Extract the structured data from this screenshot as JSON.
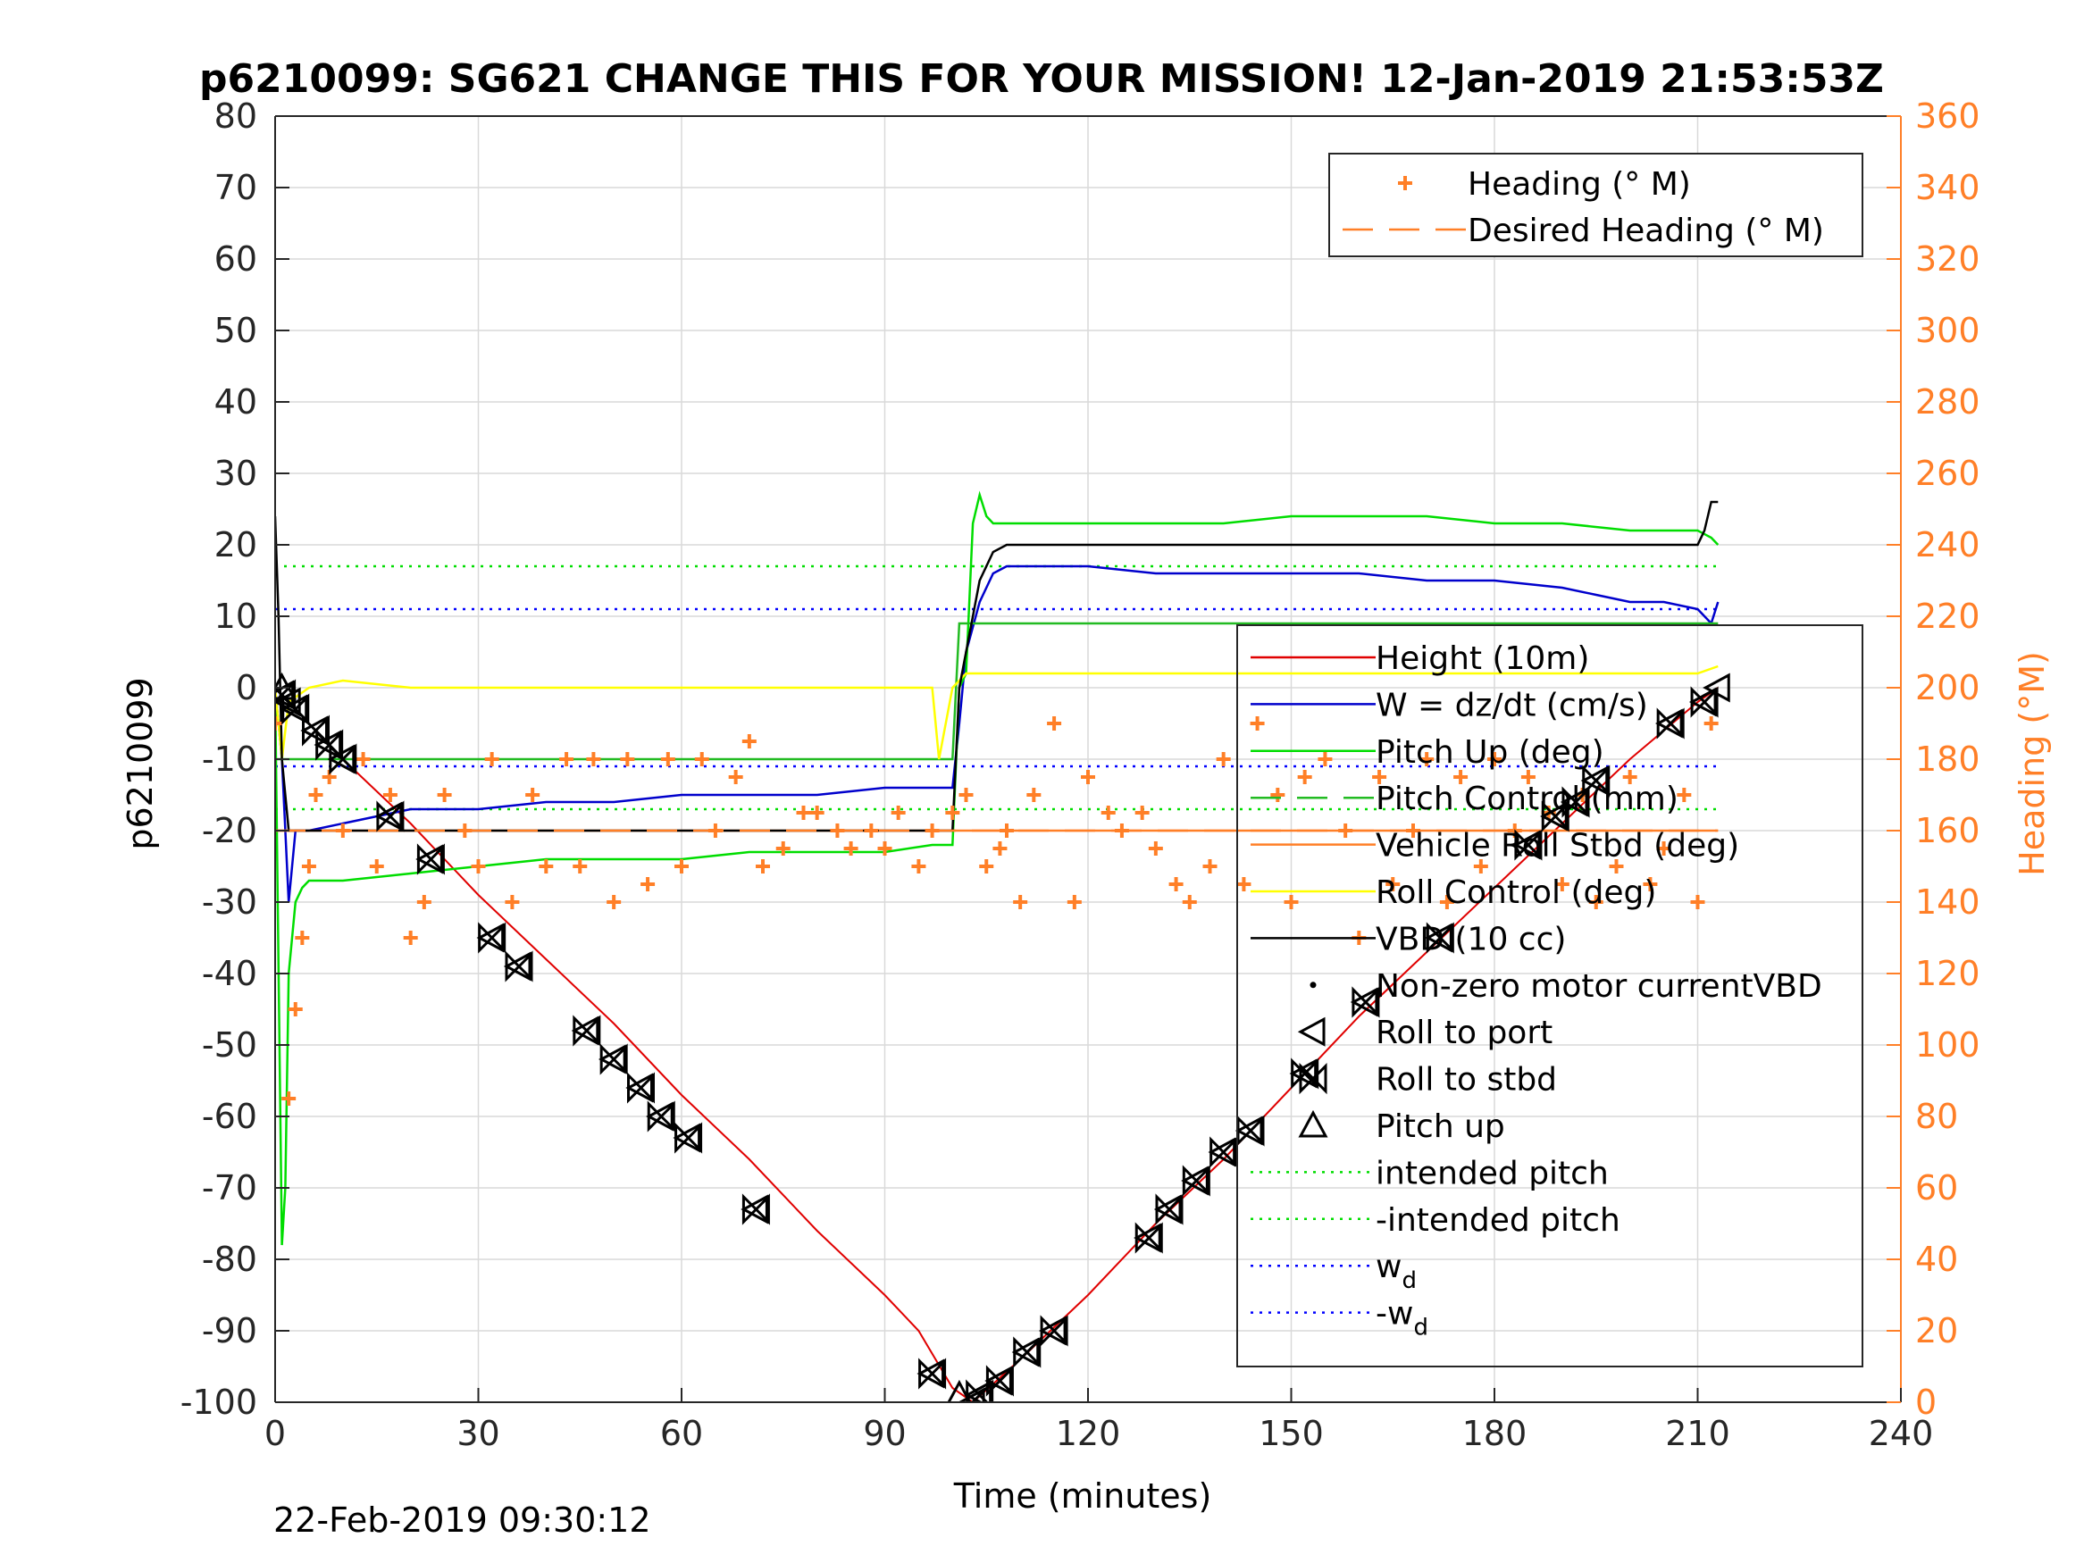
{
  "chart_data": {
    "type": "line",
    "title": "p6210099: SG621 CHANGE THIS FOR YOUR MISSION! 12-Jan-2019 21:53:53Z",
    "xlabel": "Time (minutes)",
    "ylabel": "p6210099",
    "y2label": "Heading (°M)",
    "xlim": [
      0,
      240
    ],
    "ylim": [
      -100,
      80
    ],
    "y2lim": [
      0,
      360
    ],
    "x_ticks": [
      0,
      30,
      60,
      90,
      120,
      150,
      180,
      210,
      240
    ],
    "y_ticks": [
      80,
      70,
      60,
      50,
      40,
      30,
      20,
      10,
      0,
      -10,
      -20,
      -30,
      -40,
      -50,
      -60,
      -70,
      -80,
      -90,
      -100
    ],
    "y2_ticks": [
      360,
      340,
      320,
      300,
      280,
      260,
      240,
      220,
      200,
      180,
      160,
      140,
      120,
      100,
      80,
      60,
      40,
      20,
      0
    ],
    "grid": true,
    "axis2_color": "#ff7f27",
    "series": [
      {
        "name": "Height (10m)",
        "color": "#e00000",
        "axis": "left",
        "x": [
          0,
          5,
          10,
          20,
          30,
          40,
          50,
          60,
          70,
          80,
          90,
          95,
          100,
          103,
          110,
          120,
          130,
          140,
          150,
          160,
          170,
          180,
          190,
          200,
          210,
          213
        ],
        "y": [
          0,
          -5,
          -10,
          -19,
          -29,
          -38,
          -47,
          -57,
          -66,
          -76,
          -85,
          -90,
          -98,
          -100,
          -94,
          -85,
          -75,
          -66,
          -56,
          -46,
          -37,
          -28,
          -19,
          -10,
          -2,
          0
        ]
      },
      {
        "name": "W = dz/dt (cm/s)",
        "color": "#0000cc",
        "axis": "left",
        "x": [
          0,
          1,
          2,
          3,
          5,
          10,
          15,
          20,
          30,
          40,
          50,
          60,
          70,
          80,
          90,
          100,
          101,
          102,
          104,
          106,
          108,
          115,
          120,
          130,
          140,
          150,
          160,
          170,
          180,
          190,
          195,
          200,
          205,
          210,
          212,
          213
        ],
        "y": [
          0,
          -10,
          -30,
          -20,
          -20,
          -19,
          -18,
          -17,
          -17,
          -16,
          -16,
          -15,
          -15,
          -15,
          -14,
          -14,
          -5,
          5,
          12,
          16,
          17,
          17,
          17,
          16,
          16,
          16,
          16,
          15,
          15,
          14,
          13,
          12,
          12,
          11,
          9,
          12
        ]
      },
      {
        "name": "Pitch Up (deg)",
        "color": "#00dd00",
        "axis": "left",
        "x": [
          0,
          1,
          1.5,
          2,
          3,
          4,
          5,
          10,
          20,
          30,
          40,
          50,
          60,
          70,
          80,
          90,
          97,
          100,
          101,
          102,
          103,
          104,
          105,
          106,
          110,
          120,
          130,
          140,
          150,
          160,
          170,
          180,
          190,
          200,
          205,
          210,
          212,
          213
        ],
        "y": [
          0,
          -78,
          -70,
          -40,
          -30,
          -28,
          -27,
          -27,
          -26,
          -25,
          -24,
          -24,
          -24,
          -23,
          -23,
          -23,
          -22,
          -22,
          0,
          2,
          23,
          27,
          24,
          23,
          23,
          23,
          23,
          23,
          24,
          24,
          24,
          23,
          23,
          22,
          22,
          22,
          21,
          20
        ]
      },
      {
        "name": "Pitch Control (mm)",
        "color": "#22bb22",
        "axis": "left",
        "x": [
          0,
          100,
          101,
          213
        ],
        "y": [
          -10,
          -10,
          9,
          9
        ]
      },
      {
        "name": "Vehicle Roll Stbd (deg)",
        "color": "#ff7f27",
        "axis": "left",
        "x": [
          0,
          100,
          101,
          213
        ],
        "y": [
          -20,
          -20,
          -20,
          -20
        ]
      },
      {
        "name": "Roll Control (deg)",
        "color": "#ffff00",
        "axis": "left",
        "x": [
          0,
          1,
          2,
          5,
          10,
          20,
          30,
          40,
          50,
          60,
          70,
          80,
          90,
          97,
          98,
          100,
          102,
          110,
          120,
          130,
          140,
          150,
          160,
          170,
          180,
          190,
          200,
          210,
          213
        ],
        "y": [
          0,
          -10,
          -2,
          0,
          1,
          0,
          0,
          0,
          0,
          0,
          0,
          0,
          0,
          0,
          -10,
          0,
          2,
          2,
          2,
          2,
          2,
          2,
          2,
          2,
          2,
          2,
          2,
          2,
          3
        ]
      },
      {
        "name": "VBD (10 cc)",
        "color": "#000000",
        "axis": "left",
        "x": [
          0,
          0.5,
          1,
          2,
          100,
          101,
          102,
          104,
          106,
          108,
          110,
          210,
          211,
          212,
          213
        ],
        "y": [
          24,
          10,
          -10,
          -20,
          -20,
          0,
          5,
          15,
          19,
          20,
          20,
          20,
          22,
          26,
          26
        ]
      },
      {
        "name": "Heading (° M)",
        "color": "#ff7f27",
        "axis": "right",
        "style": "markers",
        "x": [
          0,
          2,
          3,
          4,
          5,
          6,
          8,
          10,
          13,
          15,
          17,
          20,
          22,
          25,
          28,
          30,
          32,
          35,
          38,
          40,
          43,
          45,
          47,
          50,
          52,
          55,
          58,
          60,
          63,
          65,
          68,
          70,
          72,
          75,
          78,
          80,
          83,
          85,
          88,
          90,
          92,
          95,
          97,
          100,
          102,
          105,
          107,
          108,
          110,
          112,
          115,
          118,
          120,
          123,
          125,
          128,
          130,
          133,
          135,
          138,
          140,
          143,
          145,
          148,
          150,
          152,
          155,
          158,
          160,
          163,
          165,
          168,
          170,
          173,
          175,
          178,
          180,
          183,
          185,
          188,
          190,
          193,
          195,
          198,
          200,
          203,
          205,
          208,
          210,
          212
        ],
        "y": [
          190,
          85,
          110,
          130,
          150,
          170,
          175,
          160,
          180,
          150,
          170,
          130,
          140,
          170,
          160,
          150,
          180,
          140,
          170,
          150,
          180,
          150,
          180,
          140,
          180,
          145,
          180,
          150,
          180,
          160,
          175,
          185,
          150,
          155,
          165,
          165,
          160,
          155,
          160,
          155,
          165,
          150,
          160,
          165,
          170,
          150,
          155,
          160,
          140,
          170,
          190,
          140,
          175,
          165,
          160,
          165,
          155,
          145,
          140,
          150,
          180,
          145,
          190,
          170,
          140,
          175,
          180,
          160,
          130,
          175,
          145,
          160,
          180,
          140,
          175,
          150,
          180,
          160,
          175,
          165,
          145,
          170,
          140,
          150,
          175,
          145,
          155,
          170,
          140,
          190
        ]
      },
      {
        "name": "Desired Heading (° M)",
        "color": "#ff7f27",
        "axis": "right",
        "style": "dashed",
        "x": [
          0,
          213
        ],
        "y": [
          160,
          160
        ]
      }
    ],
    "markers": [
      {
        "name": "Roll to port",
        "symbol": "◁",
        "x": [
          1,
          2,
          3,
          6,
          8,
          10,
          17,
          23,
          32,
          36,
          46,
          50,
          54,
          57,
          61,
          71,
          97,
          103,
          104,
          107,
          111,
          115,
          129,
          132,
          136,
          140,
          144,
          152,
          161,
          172,
          185,
          189,
          192,
          195,
          206,
          211,
          213
        ],
        "y": [
          -1,
          -2,
          -3,
          -6,
          -8,
          -10,
          -18,
          -24,
          -35,
          -39,
          -48,
          -52,
          -56,
          -60,
          -63,
          -73,
          -96,
          -100,
          -99,
          -97,
          -93,
          -90,
          -77,
          -73,
          -69,
          -65,
          -62,
          -54,
          -44,
          -35,
          -22,
          -18,
          -16,
          -13,
          -5,
          -2,
          0
        ]
      },
      {
        "name": "Roll to stbd",
        "symbol": "⋈",
        "x": [
          1,
          3,
          6,
          8,
          10,
          17,
          23,
          32,
          36,
          46,
          50,
          54,
          57,
          61,
          71,
          97,
          104,
          107,
          111,
          115,
          129,
          132,
          136,
          140,
          144,
          152,
          161,
          172,
          185,
          189,
          192,
          195,
          206,
          211
        ],
        "y": [
          -1,
          -3,
          -6,
          -8,
          -10,
          -18,
          -24,
          -35,
          -39,
          -48,
          -52,
          -56,
          -60,
          -63,
          -73,
          -96,
          -99,
          -97,
          -93,
          -90,
          -77,
          -73,
          -69,
          -65,
          -62,
          -54,
          -44,
          -35,
          -22,
          -18,
          -16,
          -13,
          -5,
          -2
        ]
      },
      {
        "name": "Pitch up",
        "symbol": "△",
        "x": [
          1,
          101
        ],
        "y": [
          0,
          -99
        ]
      }
    ],
    "reference_lines": [
      {
        "name": "intended pitch",
        "color": "#00dd00",
        "y": 17,
        "style": "dotted"
      },
      {
        "name": "-intended pitch",
        "color": "#00dd00",
        "y": -17,
        "style": "dotted"
      },
      {
        "name": "w_d",
        "color": "#0000ff",
        "y": 11,
        "style": "dotted"
      },
      {
        "name": "-w_d",
        "color": "#0000ff",
        "y": -11,
        "style": "dotted"
      }
    ],
    "legend_upper": {
      "placement": "top-right",
      "entries": [
        {
          "label": "Heading (° M)",
          "style": "plus",
          "color": "#ff7f27"
        },
        {
          "label": "Desired Heading (° M)",
          "style": "dashed",
          "color": "#ff7f27"
        }
      ]
    },
    "legend_lower": {
      "placement": "right",
      "entries": [
        {
          "label": "Height (10m)",
          "style": "line",
          "color": "#e00000"
        },
        {
          "label": "W = dz/dt (cm/s)",
          "style": "line",
          "color": "#0000cc"
        },
        {
          "label": "Pitch Up (deg)",
          "style": "line",
          "color": "#00dd00"
        },
        {
          "label": "Pitch Control (mm)",
          "style": "dashed",
          "color": "#22bb22"
        },
        {
          "label": "Vehicle Roll Stbd (deg)",
          "style": "line",
          "color": "#ff7f27"
        },
        {
          "label": "Roll Control (deg)",
          "style": "line",
          "color": "#ffff00"
        },
        {
          "label": "VBD (10 cc)",
          "style": "line",
          "color": "#000000"
        },
        {
          "label": "Non-zero motor currentVBD",
          "style": "dot",
          "color": "#000000"
        },
        {
          "label": "Roll to port",
          "style": "tri-left",
          "color": "#000000"
        },
        {
          "label": "Roll to stbd",
          "style": "bowtie",
          "color": "#000000"
        },
        {
          "label": "Pitch up",
          "style": "tri-up",
          "color": "#000000"
        },
        {
          "label": "intended pitch",
          "style": "dotted",
          "color": "#00dd00"
        },
        {
          "label": "-intended pitch",
          "style": "dotted",
          "color": "#00dd00"
        },
        {
          "label": "w",
          "sub": "d",
          "style": "dotted",
          "color": "#0000ff"
        },
        {
          "label": "-w",
          "sub": "d",
          "style": "dotted",
          "color": "#0000ff"
        }
      ]
    }
  },
  "footer": {
    "timestamp": "22-Feb-2019 09:30:12"
  }
}
